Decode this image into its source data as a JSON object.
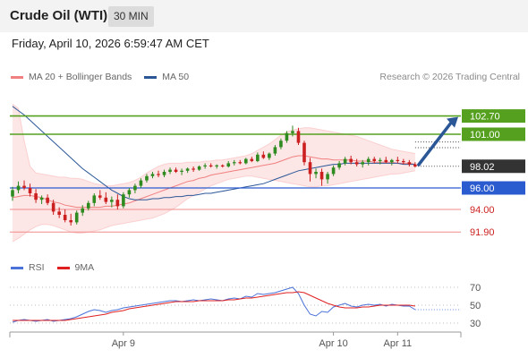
{
  "header": {
    "title": "Crude Oil (WTI)",
    "timeframe": "30 MIN"
  },
  "datetime": "Friday, April 10, 2026 6:59:47 AM CET",
  "legend_main": [
    {
      "label": "MA 20 + Bollinger Bands",
      "color": "#f08080"
    },
    {
      "label": "MA 50",
      "color": "#2b5797"
    }
  ],
  "credit": "Research © 2026 Trading Central",
  "legend_rsi": [
    {
      "label": "RSI",
      "color": "#4a72d8"
    },
    {
      "label": "9MA",
      "color": "#e02020"
    }
  ],
  "colors": {
    "up": "#2e8b20",
    "down": "#cc1f1f",
    "resistance": "#55a01e",
    "support": "#f08a8a",
    "pivot": "#2b5ccf",
    "last_price": "#333333",
    "arrow": "#2b5797"
  },
  "chart_data": {
    "type": "candlestick",
    "ylim": [
      90.5,
      105.5
    ],
    "yticks_shown": [],
    "candles": [
      [
        95.2,
        96.1,
        94.8,
        95.8
      ],
      [
        95.8,
        96.6,
        95.5,
        96.2
      ],
      [
        96.2,
        96.7,
        95.8,
        96.0
      ],
      [
        96.0,
        96.4,
        95.2,
        95.5
      ],
      [
        95.5,
        95.9,
        94.6,
        94.9
      ],
      [
        94.9,
        95.3,
        94.5,
        95.1
      ],
      [
        95.1,
        95.4,
        94.4,
        94.6
      ],
      [
        94.6,
        94.9,
        93.5,
        93.8
      ],
      [
        93.8,
        94.2,
        93.2,
        93.5
      ],
      [
        93.5,
        94.0,
        92.8,
        93.0
      ],
      [
        93.0,
        93.6,
        92.5,
        92.8
      ],
      [
        92.8,
        93.9,
        92.6,
        93.7
      ],
      [
        93.7,
        94.4,
        93.4,
        94.1
      ],
      [
        94.1,
        94.8,
        93.9,
        94.6
      ],
      [
        94.6,
        95.5,
        94.3,
        95.3
      ],
      [
        95.3,
        95.8,
        94.9,
        95.1
      ],
      [
        95.1,
        95.6,
        94.5,
        94.7
      ],
      [
        94.7,
        95.2,
        94.2,
        94.9
      ],
      [
        94.9,
        95.4,
        94.0,
        94.3
      ],
      [
        94.3,
        95.6,
        94.1,
        95.4
      ],
      [
        95.4,
        96.0,
        95.1,
        95.8
      ],
      [
        95.8,
        96.4,
        95.5,
        96.2
      ],
      [
        96.2,
        96.9,
        96.0,
        96.7
      ],
      [
        96.7,
        97.3,
        96.5,
        97.1
      ],
      [
        97.1,
        97.5,
        96.9,
        97.3
      ],
      [
        97.3,
        97.6,
        97.0,
        97.2
      ],
      [
        97.2,
        97.7,
        97.0,
        97.5
      ],
      [
        97.5,
        97.9,
        97.3,
        97.7
      ],
      [
        97.7,
        97.9,
        97.4,
        97.5
      ],
      [
        97.5,
        97.8,
        97.2,
        97.6
      ],
      [
        97.6,
        97.9,
        97.4,
        97.8
      ],
      [
        97.8,
        98.0,
        97.5,
        97.7
      ],
      [
        97.7,
        98.1,
        97.6,
        98.0
      ],
      [
        98.0,
        98.3,
        97.8,
        98.1
      ],
      [
        98.1,
        98.3,
        97.9,
        98.0
      ],
      [
        98.0,
        98.2,
        97.8,
        98.1
      ],
      [
        98.1,
        98.2,
        97.9,
        98.0
      ],
      [
        98.0,
        98.5,
        97.9,
        98.3
      ],
      [
        98.3,
        98.6,
        98.1,
        98.4
      ],
      [
        98.4,
        98.6,
        98.2,
        98.3
      ],
      [
        98.3,
        98.8,
        98.2,
        98.7
      ],
      [
        98.7,
        98.9,
        98.4,
        98.5
      ],
      [
        98.5,
        99.3,
        98.4,
        99.1
      ],
      [
        99.1,
        99.4,
        98.7,
        98.8
      ],
      [
        98.8,
        99.3,
        98.6,
        99.2
      ],
      [
        99.2,
        100.0,
        99.0,
        99.8
      ],
      [
        99.8,
        100.6,
        99.6,
        100.4
      ],
      [
        100.4,
        101.3,
        100.2,
        101.1
      ],
      [
        101.1,
        101.8,
        100.8,
        101.3
      ],
      [
        101.3,
        101.6,
        100.0,
        100.2
      ],
      [
        100.2,
        100.4,
        98.1,
        98.4
      ],
      [
        98.4,
        98.8,
        96.6,
        97.3
      ],
      [
        97.3,
        97.8,
        96.9,
        97.5
      ],
      [
        97.5,
        97.8,
        96.2,
        96.8
      ],
      [
        96.8,
        97.5,
        96.4,
        97.3
      ],
      [
        97.3,
        98.1,
        97.1,
        97.9
      ],
      [
        97.9,
        98.5,
        97.7,
        98.3
      ],
      [
        98.3,
        98.9,
        98.1,
        98.7
      ],
      [
        98.7,
        99.0,
        98.2,
        98.4
      ],
      [
        98.4,
        98.7,
        98.0,
        98.2
      ],
      [
        98.2,
        98.6,
        97.9,
        98.4
      ],
      [
        98.4,
        98.9,
        98.1,
        98.7
      ],
      [
        98.7,
        98.9,
        98.3,
        98.5
      ],
      [
        98.5,
        98.8,
        98.2,
        98.6
      ],
      [
        98.6,
        98.9,
        98.3,
        98.4
      ],
      [
        98.4,
        98.7,
        98.1,
        98.6
      ],
      [
        98.6,
        98.9,
        98.3,
        98.5
      ],
      [
        98.5,
        98.7,
        98.2,
        98.4
      ],
      [
        98.4,
        98.6,
        98.0,
        98.2
      ],
      [
        98.2,
        98.4,
        97.9,
        98.0
      ]
    ],
    "ma20": [
      95.1,
      95.2,
      95.3,
      95.3,
      95.2,
      95.1,
      94.9,
      94.7,
      94.6,
      94.4,
      94.3,
      94.2,
      94.2,
      94.2,
      94.2,
      94.2,
      94.3,
      94.3,
      94.4,
      94.5,
      94.6,
      94.8,
      95.0,
      95.2,
      95.4,
      95.6,
      95.8,
      96.0,
      96.2,
      96.4,
      96.6,
      96.7,
      96.9,
      97.0,
      97.2,
      97.3,
      97.4,
      97.5,
      97.6,
      97.7,
      97.8,
      97.9,
      98.0,
      98.1,
      98.2,
      98.3,
      98.5,
      98.7,
      98.9,
      99.0,
      99.0,
      98.9,
      98.8,
      98.7,
      98.7,
      98.6,
      98.6,
      98.6,
      98.6,
      98.5,
      98.5,
      98.5,
      98.4,
      98.4,
      98.4,
      98.4,
      98.3,
      98.3,
      98.3,
      98.2
    ],
    "bb_upper": [
      103.8,
      103.4,
      100.4,
      98.0,
      97.4,
      97.3,
      97.2,
      97.1,
      97.0,
      97.0,
      96.9,
      96.9,
      96.8,
      96.6,
      96.4,
      96.3,
      96.2,
      96.2,
      96.3,
      96.4,
      96.5,
      96.7,
      97.0,
      97.4,
      97.7,
      98.0,
      98.2,
      98.3,
      98.3,
      98.3,
      98.4,
      98.4,
      98.4,
      98.5,
      98.5,
      98.6,
      98.6,
      98.7,
      98.8,
      98.9,
      99.0,
      99.2,
      99.5,
      99.8,
      100.1,
      100.5,
      100.9,
      101.2,
      101.4,
      101.5,
      101.6,
      101.6,
      101.5,
      101.4,
      101.3,
      101.2,
      101.1,
      101.0,
      100.9,
      100.8,
      100.6,
      100.4,
      100.2,
      100.0,
      99.8,
      99.6,
      99.5,
      99.4,
      99.3,
      99.2
    ],
    "bb_lower": [
      91.0,
      91.3,
      91.7,
      92.1,
      92.4,
      92.6,
      92.6,
      92.5,
      92.3,
      92.1,
      91.9,
      91.8,
      91.8,
      91.9,
      92.0,
      92.1,
      92.3,
      92.5,
      92.6,
      92.7,
      92.8,
      92.9,
      93.0,
      93.1,
      93.2,
      93.4,
      93.6,
      93.9,
      94.2,
      94.6,
      95.0,
      95.3,
      95.6,
      95.9,
      96.2,
      96.4,
      96.6,
      96.8,
      96.9,
      97.0,
      97.1,
      97.1,
      97.0,
      96.9,
      96.8,
      96.7,
      96.6,
      96.5,
      96.4,
      96.3,
      96.2,
      96.1,
      96.1,
      96.2,
      96.2,
      96.3,
      96.4,
      96.5,
      96.6,
      96.7,
      96.8,
      96.9,
      97.0,
      97.1,
      97.2,
      97.3,
      97.3,
      97.4,
      97.5,
      97.6
    ],
    "ma50": [
      103.6,
      103.2,
      102.8,
      102.3,
      101.8,
      101.3,
      100.8,
      100.3,
      99.8,
      99.3,
      98.8,
      98.3,
      97.8,
      97.4,
      97.0,
      96.6,
      96.2,
      95.8,
      95.5,
      95.2,
      95.0,
      94.9,
      94.9,
      94.9,
      95.0,
      95.0,
      95.1,
      95.1,
      95.2,
      95.2,
      95.3,
      95.3,
      95.4,
      95.5,
      95.5,
      95.6,
      95.7,
      95.8,
      95.9,
      96.0,
      96.1,
      96.2,
      96.3,
      96.4,
      96.6,
      96.8,
      97.0,
      97.2,
      97.4,
      97.6,
      97.7,
      97.8,
      97.9,
      98.0,
      98.1,
      98.2,
      98.2,
      98.3,
      98.3,
      98.3,
      98.3,
      98.3,
      98.3,
      98.3,
      98.3,
      98.3,
      98.3,
      98.2,
      98.2,
      98.2
    ],
    "levels": [
      {
        "value": "102.70",
        "kind": "resistance"
      },
      {
        "value": "101.00",
        "kind": "resistance"
      },
      {
        "value": "98.02",
        "kind": "last"
      },
      {
        "value": "96.00",
        "kind": "pivot"
      },
      {
        "value": "94.00",
        "kind": "support"
      },
      {
        "value": "91.90",
        "kind": "support"
      }
    ],
    "rsi": {
      "ylim": [
        20,
        80
      ],
      "ticks": [
        "70",
        "50",
        "30"
      ],
      "values": [
        31,
        33,
        34,
        33,
        32,
        33,
        34,
        32,
        33,
        34,
        35,
        37,
        40,
        43,
        45,
        44,
        42,
        44,
        45,
        47,
        48,
        49,
        50,
        51,
        52,
        53,
        54,
        55,
        55,
        54,
        55,
        56,
        55,
        56,
        57,
        56,
        55,
        57,
        58,
        57,
        60,
        59,
        63,
        62,
        63,
        64,
        66,
        68,
        70,
        63,
        50,
        40,
        38,
        43,
        42,
        48,
        50,
        52,
        49,
        48,
        50,
        51,
        50,
        51,
        49,
        51,
        50,
        49,
        49,
        45
      ],
      "ma9": [
        33,
        33,
        33,
        33,
        33,
        33,
        33,
        33,
        33,
        33,
        34,
        35,
        36,
        37,
        38,
        39,
        40,
        42,
        43,
        44,
        46,
        47,
        48,
        49,
        50,
        51,
        52,
        53,
        54,
        54,
        54,
        54,
        55,
        55,
        55,
        55,
        55,
        56,
        56,
        57,
        58,
        58,
        59,
        60,
        61,
        62,
        63,
        64,
        64,
        65,
        64,
        61,
        58,
        55,
        52,
        50,
        48,
        47,
        47,
        47,
        48,
        48,
        49,
        50,
        50,
        50,
        50,
        50,
        50,
        49
      ]
    },
    "xlabels": [
      {
        "label": "Apr 9",
        "index": 19
      },
      {
        "label": "Apr 10",
        "index": 55
      },
      {
        "label": "Apr 11",
        "index": 66
      }
    ]
  }
}
